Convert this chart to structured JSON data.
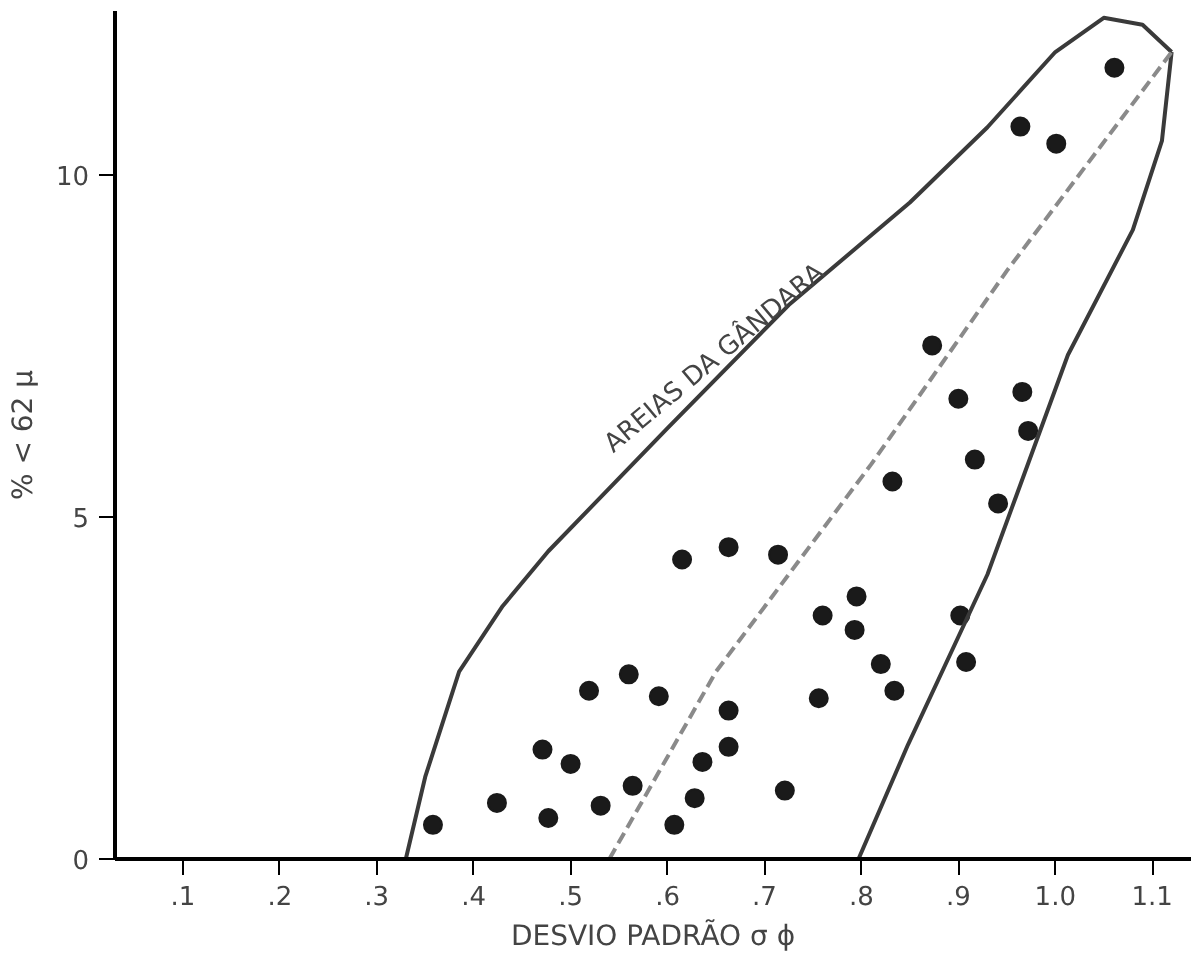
{
  "chart_data": {
    "type": "scatter",
    "xlabel": "DESVIO PADRÃO σ ϕ",
    "ylabel": "% < 62 μ",
    "xlim": [
      0.03,
      1.14
    ],
    "ylim": [
      0,
      12.4
    ],
    "xticks": [
      {
        "value": 0.1,
        "label": ".1"
      },
      {
        "value": 0.2,
        "label": ".2"
      },
      {
        "value": 0.3,
        "label": ".3"
      },
      {
        "value": 0.4,
        "label": ".4"
      },
      {
        "value": 0.5,
        "label": ".5"
      },
      {
        "value": 0.6,
        "label": ".6"
      },
      {
        "value": 0.7,
        "label": ".7"
      },
      {
        "value": 0.8,
        "label": ".8"
      },
      {
        "value": 0.9,
        "label": ".9"
      },
      {
        "value": 1.0,
        "label": "1.0"
      },
      {
        "value": 1.1,
        "label": "1.1"
      }
    ],
    "yticks": [
      0,
      5,
      10
    ],
    "grid": false,
    "marker": "circle",
    "annotations": [
      "AREIAS DA GÂNDARA"
    ],
    "series": [
      {
        "color": "#1a1a1a",
        "x": [
          0.358,
          0.424,
          0.477,
          0.471,
          0.5,
          0.519,
          0.56,
          0.591,
          0.531,
          0.564,
          0.607,
          0.628,
          0.636,
          0.663,
          0.663,
          0.615,
          0.663,
          0.714,
          0.721,
          0.76,
          0.756,
          1.061,
          0.964,
          1.001,
          0.873,
          0.9,
          0.966,
          0.972,
          0.917,
          0.941,
          0.832,
          0.795,
          0.793,
          0.82,
          0.834,
          0.902,
          0.908
        ],
        "values": [
          0.5,
          0.82,
          0.6,
          1.6,
          1.39,
          2.46,
          2.7,
          2.38,
          0.78,
          1.07,
          0.5,
          0.89,
          1.42,
          1.64,
          2.17,
          4.38,
          4.56,
          4.45,
          1.0,
          3.56,
          2.35,
          11.57,
          10.71,
          10.46,
          7.51,
          6.73,
          6.83,
          6.26,
          5.84,
          5.2,
          5.52,
          3.84,
          3.35,
          2.85,
          2.46,
          3.56,
          2.88
        ]
      },
      {
        "type": "line",
        "color": "#3a3a3a",
        "line_style": "solid",
        "marker": "none",
        "x": [
          0.33,
          0.35,
          0.385,
          0.43,
          0.477,
          0.6,
          0.725,
          0.85,
          0.93,
          1.0,
          1.05,
          1.09,
          1.12
        ],
        "values": [
          0,
          1.2,
          2.74,
          3.7,
          4.5,
          6.3,
          8.1,
          9.6,
          10.7,
          11.8,
          12.3,
          12.2,
          11.8
        ]
      },
      {
        "type": "line",
        "color": "#3a3a3a",
        "line_style": "solid",
        "marker": "none",
        "x": [
          0.797,
          0.848,
          0.93,
          1.013,
          1.08,
          1.11,
          1.12
        ],
        "values": [
          0,
          1.67,
          4.16,
          7.37,
          9.2,
          10.5,
          11.8
        ]
      },
      {
        "type": "line",
        "color": "#8a8a8a",
        "line_style": "dashed",
        "marker": "none",
        "x": [
          0.54,
          0.65,
          0.81,
          0.95,
          1.12
        ],
        "values": [
          0,
          2.74,
          5.77,
          8.6,
          11.8
        ]
      }
    ]
  }
}
